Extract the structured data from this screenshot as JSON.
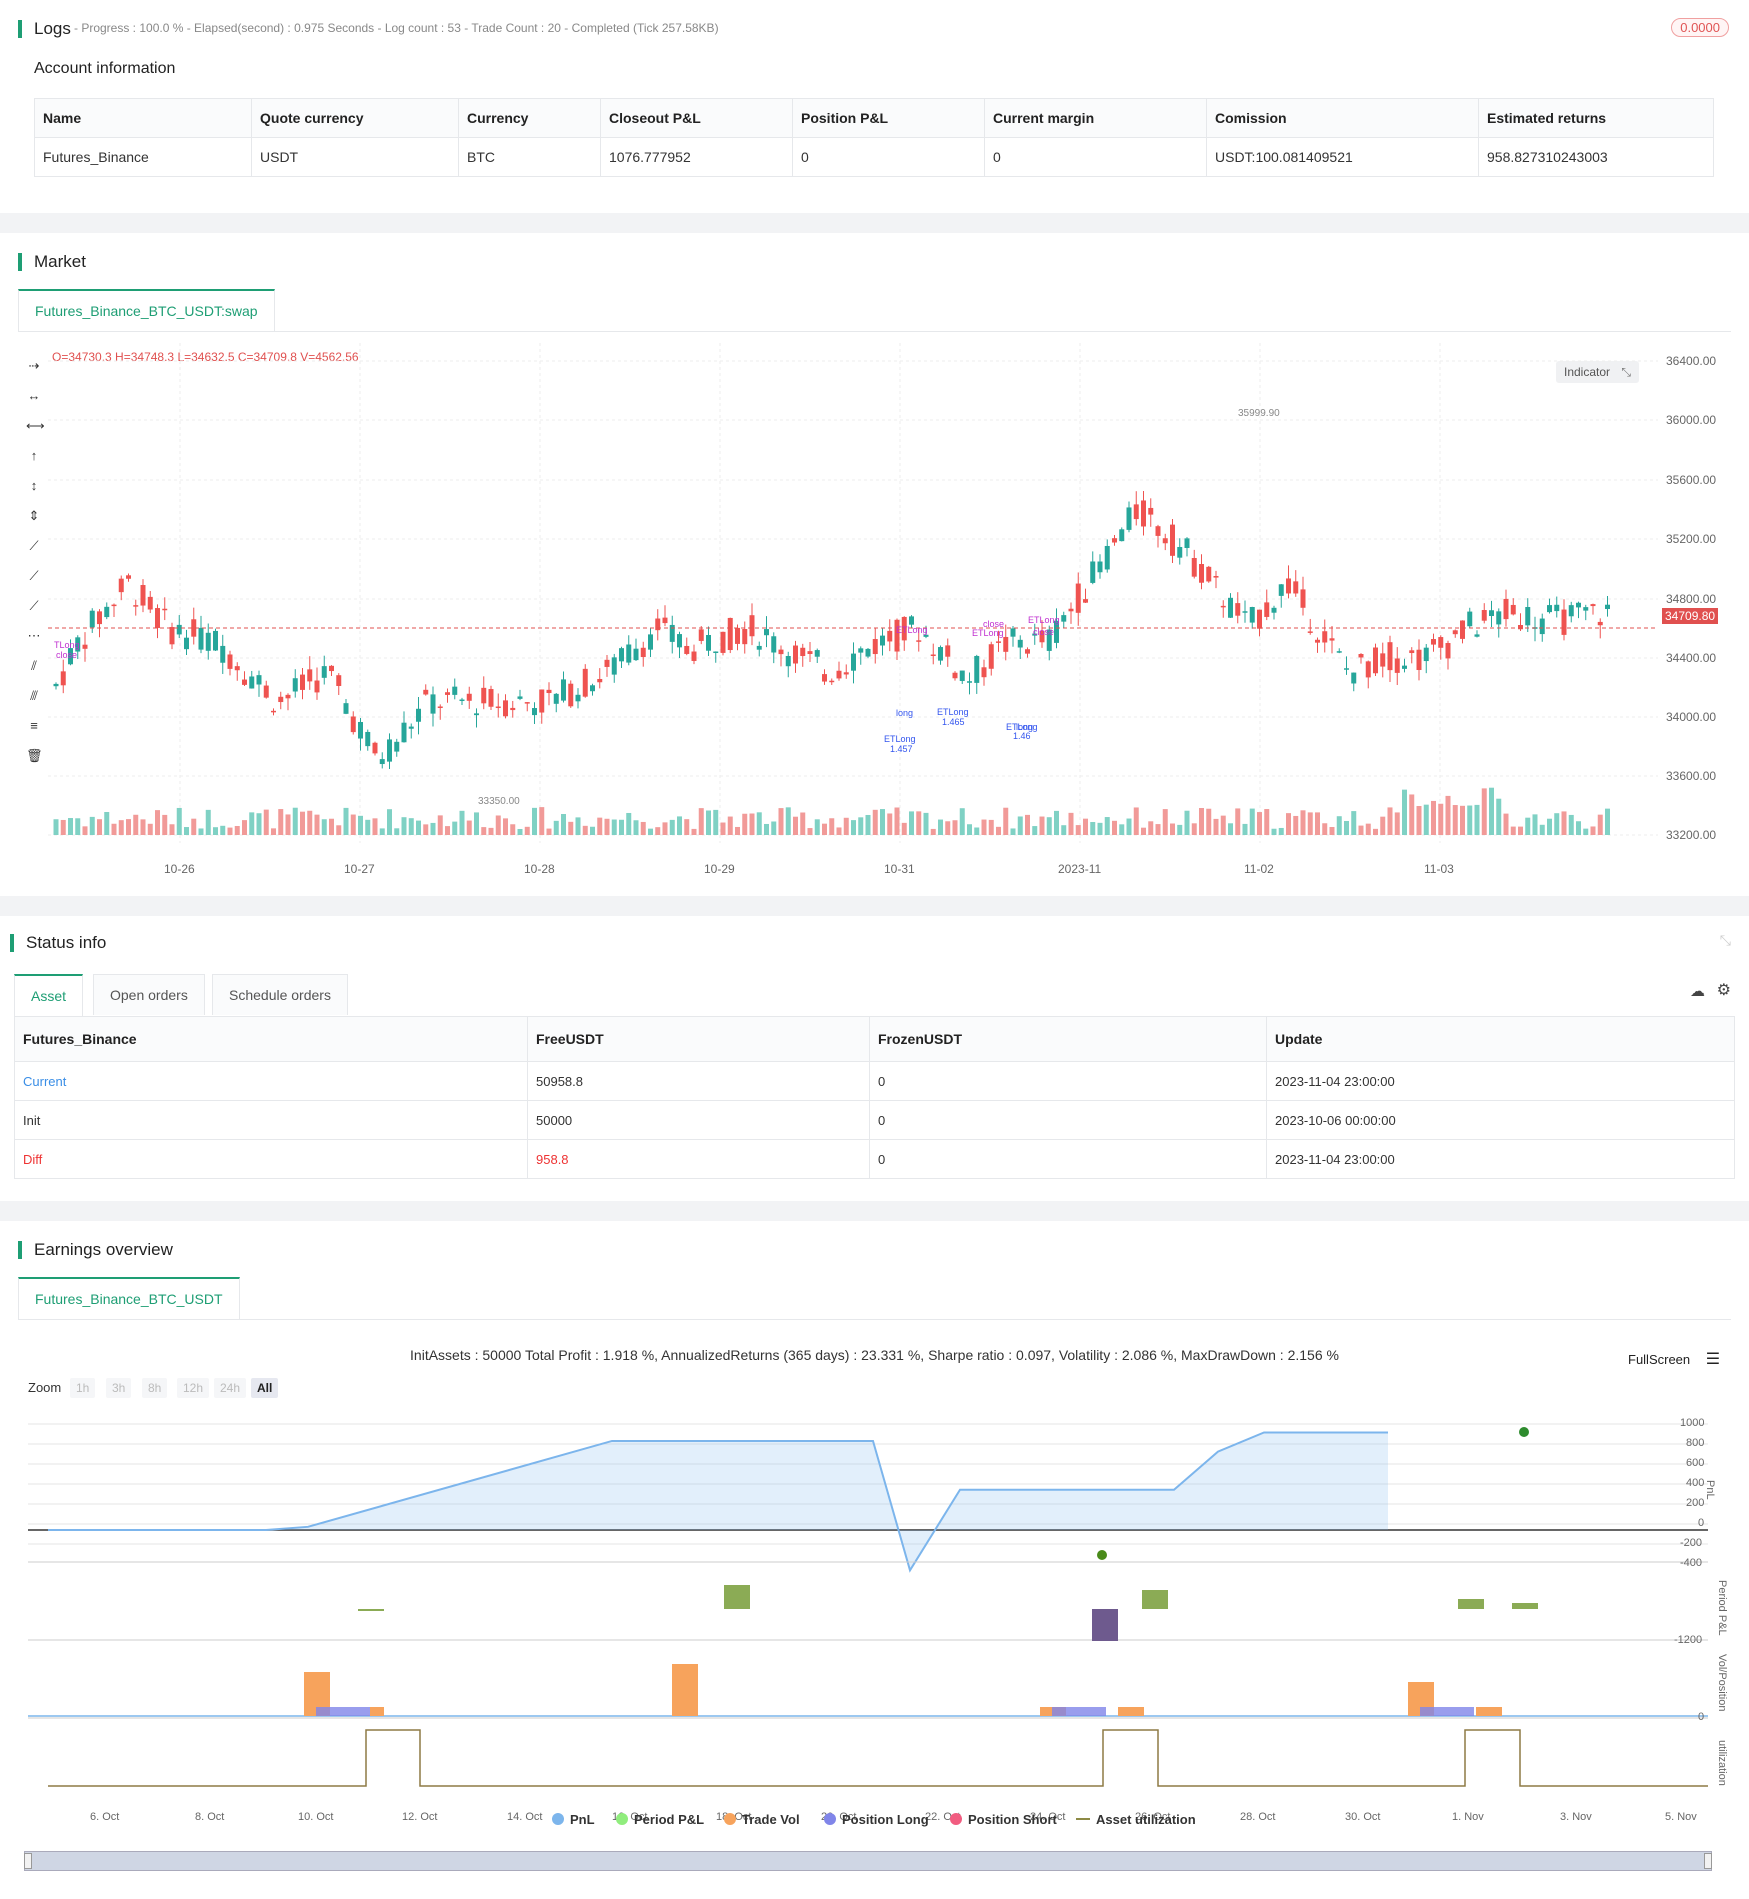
{
  "logs": {
    "title": "Logs",
    "status_line": "- Progress : 100.0 % - Elapsed(second) : 0.975  Seconds - Log count : 53 - Trade Count : 20 - Completed (Tick 257.58KB)",
    "badge": "0.0000",
    "account_title": "Account information",
    "columns": [
      "Name",
      "Quote currency",
      "Currency",
      "Closeout P&L",
      "Position P&L",
      "Current margin",
      "Comission",
      "Estimated returns"
    ],
    "row": [
      "Futures_Binance",
      "USDT",
      "BTC",
      "1076.777952",
      "0",
      "0",
      "USDT:100.081409521",
      "958.827310243003"
    ]
  },
  "market": {
    "title": "Market",
    "tab": "Futures_Binance_BTC_USDT:swap",
    "ohlc": "O=34730.3 H=34748.3 L=34632.5 C=34709.8 V=4562.56",
    "indicator_btn": "Indicator",
    "current_price": "34709.80",
    "high_label": "35999.90",
    "low_label": "33350.00",
    "y_ticks": [
      "36400.00",
      "36000.00",
      "35600.00",
      "35200.00",
      "34800.00",
      "34400.00",
      "34000.00",
      "33600.00",
      "33200.00"
    ],
    "x_ticks": [
      "10-26",
      "10-27",
      "10-28",
      "10-29",
      "10-31",
      "2023-11",
      "11-02",
      "11-03"
    ],
    "annotations": [
      "TLong",
      "close",
      "ETLong",
      "close",
      "ETLong",
      "close",
      "ETLong",
      "close",
      "long",
      "ETLong",
      "1.457",
      "ETLong",
      "1.465",
      "ETLong",
      "1.46",
      "long"
    ]
  },
  "status": {
    "title": "Status info",
    "tabs": [
      "Asset",
      "Open orders",
      "Schedule orders"
    ],
    "columns": [
      "Futures_Binance",
      "FreeUSDT",
      "FrozenUSDT",
      "Update"
    ],
    "rows": [
      [
        "Current",
        "50958.8",
        "0",
        "2023-11-04 23:00:00"
      ],
      [
        "Init",
        "50000",
        "0",
        "2023-10-06 00:00:00"
      ],
      [
        "Diff",
        "958.8",
        "0",
        "2023-11-04 23:00:00"
      ]
    ]
  },
  "earnings": {
    "title": "Earnings overview",
    "tab": "Futures_Binance_BTC_USDT",
    "summary": "InitAssets : 50000 Total Profit : 1.918 %, AnnualizedReturns (365 days) : 23.331 %, Sharpe ratio : 0.097, Volatility : 2.086 %, MaxDrawDown : 2.156 %",
    "fullscreen": "FullScreen",
    "zoom_label": "Zoom",
    "zoom_options": [
      "1h",
      "3h",
      "8h",
      "12h",
      "24h",
      "All"
    ],
    "pnl_ticks": [
      "1000",
      "800",
      "600",
      "400",
      "200",
      "0",
      "-200",
      "-400"
    ],
    "period_tick": "-1200",
    "vol_tick": "0",
    "axis_titles": [
      "PnL",
      "Period P&L",
      "Vol/Position",
      "utilization"
    ],
    "x_ticks": [
      "6. Oct",
      "8. Oct",
      "10. Oct",
      "12. Oct",
      "14. Oct",
      "16. Oct",
      "18. Oct",
      "20. Oct",
      "22. Oct",
      "24. Oct",
      "26. Oct",
      "28. Oct",
      "30. Oct",
      "1. Nov",
      "3. Nov",
      "5. Nov"
    ],
    "legend": [
      {
        "label": "PnL",
        "color": "#7cb5ec"
      },
      {
        "label": "Period P&L",
        "color": "#90ed7d"
      },
      {
        "label": "Trade Vol",
        "color": "#f7a35c"
      },
      {
        "label": "Position Long",
        "color": "#8085e9"
      },
      {
        "label": "Position Short",
        "color": "#f15c80"
      },
      {
        "label": "Asset utilization",
        "color": "#8d8a45"
      }
    ]
  },
  "chart_data": {
    "type": "line",
    "x": [
      "6. Oct",
      "10. Oct",
      "11. Oct",
      "18. Oct",
      "24. Oct",
      "25. Oct",
      "26. Oct",
      "31. Oct",
      "1. Nov",
      "2. Nov",
      "5. Nov"
    ],
    "series": [
      {
        "name": "PnL",
        "values": [
          0,
          0,
          30,
          840,
          840,
          -380,
          380,
          380,
          740,
          920,
          920
        ]
      }
    ],
    "ylim": [
      -400,
      1000
    ]
  }
}
